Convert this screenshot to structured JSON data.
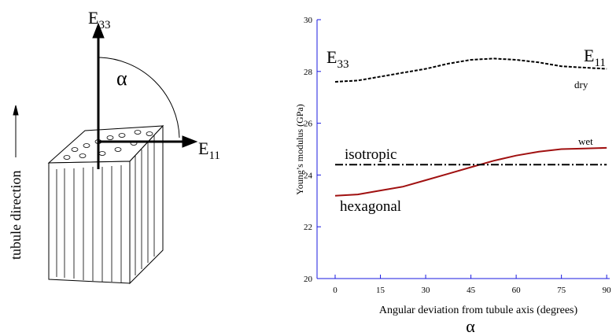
{
  "diagram": {
    "e33": {
      "base": "E",
      "sub": "33"
    },
    "e11": {
      "base": "E",
      "sub": "11"
    },
    "angle": "α",
    "direction": "tubule direction"
  },
  "chart_data": {
    "type": "line",
    "x": [
      0,
      7.5,
      15,
      22.5,
      30,
      37.5,
      45,
      52.5,
      60,
      67.5,
      75,
      82.5,
      90
    ],
    "series": [
      {
        "name": "dry",
        "color": "#000000",
        "style": "dashed",
        "values": [
          27.6,
          27.65,
          27.8,
          27.95,
          28.1,
          28.3,
          28.45,
          28.5,
          28.45,
          28.35,
          28.2,
          28.15,
          28.1
        ]
      },
      {
        "name": "wet",
        "color": "#a01010",
        "style": "solid",
        "values": [
          23.2,
          23.25,
          23.4,
          23.55,
          23.8,
          24.05,
          24.3,
          24.55,
          24.75,
          24.9,
          25.0,
          25.02,
          25.05
        ]
      },
      {
        "name": "isotropic",
        "color": "#000000",
        "style": "dashdot",
        "values": [
          24.4,
          24.4,
          24.4,
          24.4,
          24.4,
          24.4,
          24.4,
          24.4,
          24.4,
          24.4,
          24.4,
          24.4,
          24.4
        ]
      }
    ],
    "annotations": {
      "hexagonal": "hexagonal",
      "e33": {
        "base": "E",
        "sub": "33"
      },
      "e11": {
        "base": "E",
        "sub": "11"
      },
      "alpha": "α"
    },
    "xlabel": "Angular deviation from tubule axis (degrees)",
    "ylabel": "Young’s modulus (GPa)",
    "xlim": [
      -6,
      91
    ],
    "xticks": [
      0,
      15,
      30,
      45,
      60,
      75,
      90
    ],
    "ylim": [
      20,
      30
    ],
    "yticks": [
      20,
      22,
      24,
      26,
      28,
      30
    ],
    "axis_color": "#1a1adf"
  }
}
